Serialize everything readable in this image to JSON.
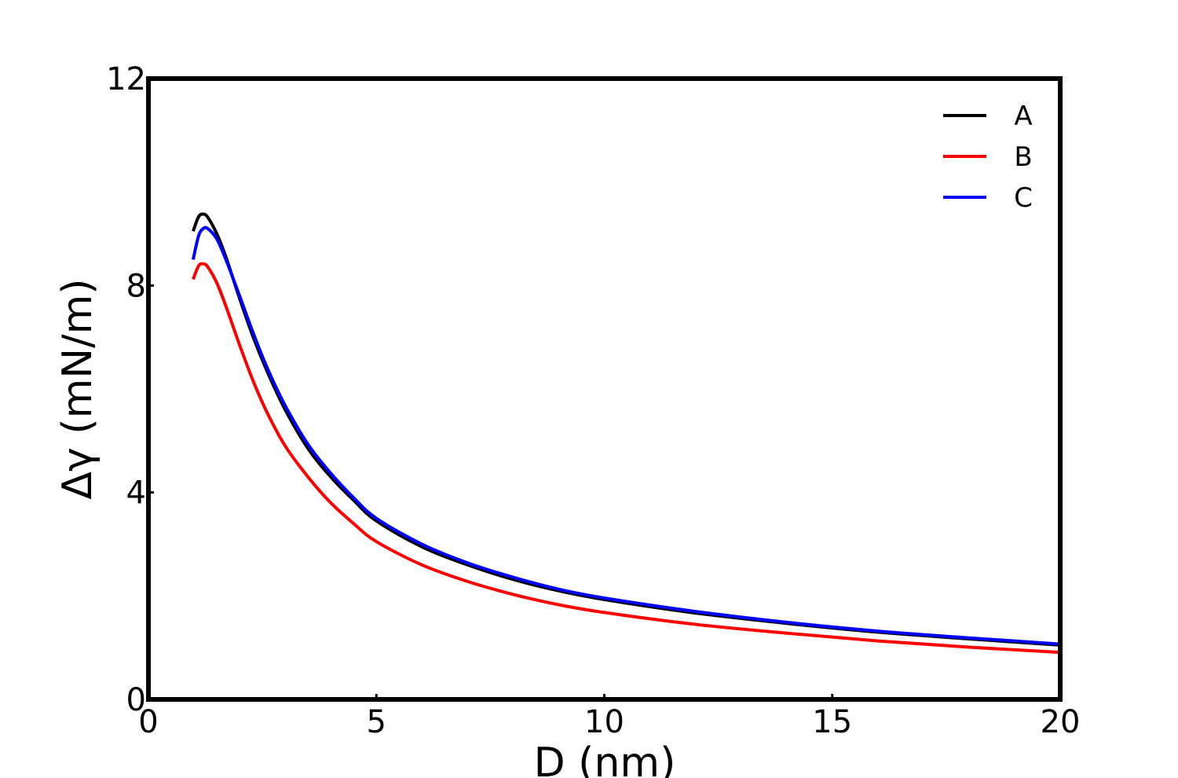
{
  "chart_data": {
    "type": "line",
    "xlabel": "D (nm)",
    "ylabel": "Δγ (mN/m)",
    "xlim": [
      0,
      20
    ],
    "ylim": [
      0,
      12
    ],
    "xticks": [
      0,
      5,
      10,
      15,
      20
    ],
    "yticks": [
      0,
      4,
      8,
      12
    ],
    "xtick_labels": [
      "0",
      "5",
      "10",
      "15",
      "20"
    ],
    "ytick_labels": [
      "0",
      "4",
      "8",
      "12"
    ],
    "grid": false,
    "legend_position": "top-right",
    "series": [
      {
        "name": "A",
        "color": "#000000",
        "x": [
          0.98,
          1.1,
          1.2,
          1.3,
          1.5,
          1.7,
          2.0,
          2.3,
          2.6,
          3.0,
          3.5,
          4.0,
          4.5,
          5.0,
          6.0,
          7.0,
          8.0,
          9.0,
          10.0,
          12.0,
          14.0,
          16.0,
          18.0,
          20.0
        ],
        "y": [
          9.05,
          9.33,
          9.38,
          9.32,
          9.0,
          8.55,
          7.75,
          7.0,
          6.35,
          5.6,
          4.85,
          4.3,
          3.85,
          3.45,
          2.95,
          2.6,
          2.32,
          2.1,
          1.93,
          1.67,
          1.47,
          1.3,
          1.17,
          1.05
        ]
      },
      {
        "name": "B",
        "color": "#ff0000",
        "x": [
          0.98,
          1.1,
          1.2,
          1.3,
          1.5,
          1.7,
          2.0,
          2.3,
          2.6,
          3.0,
          3.5,
          4.0,
          4.5,
          5.0,
          6.0,
          7.0,
          8.0,
          9.0,
          10.0,
          12.0,
          14.0,
          16.0,
          18.0,
          20.0
        ],
        "y": [
          8.12,
          8.38,
          8.42,
          8.36,
          8.05,
          7.6,
          6.85,
          6.15,
          5.55,
          4.9,
          4.3,
          3.8,
          3.4,
          3.05,
          2.6,
          2.28,
          2.03,
          1.83,
          1.68,
          1.45,
          1.28,
          1.13,
          1.01,
          0.91
        ]
      },
      {
        "name": "C",
        "color": "#0000ff",
        "x": [
          0.98,
          1.1,
          1.2,
          1.3,
          1.5,
          1.7,
          2.0,
          2.3,
          2.6,
          3.0,
          3.5,
          4.0,
          4.5,
          5.0,
          6.0,
          7.0,
          8.0,
          9.0,
          10.0,
          12.0,
          14.0,
          16.0,
          18.0,
          20.0
        ],
        "y": [
          8.5,
          8.96,
          9.1,
          9.1,
          8.9,
          8.5,
          7.8,
          7.08,
          6.42,
          5.68,
          4.93,
          4.37,
          3.9,
          3.5,
          3.0,
          2.64,
          2.36,
          2.13,
          1.96,
          1.7,
          1.49,
          1.32,
          1.19,
          1.07
        ]
      }
    ]
  }
}
